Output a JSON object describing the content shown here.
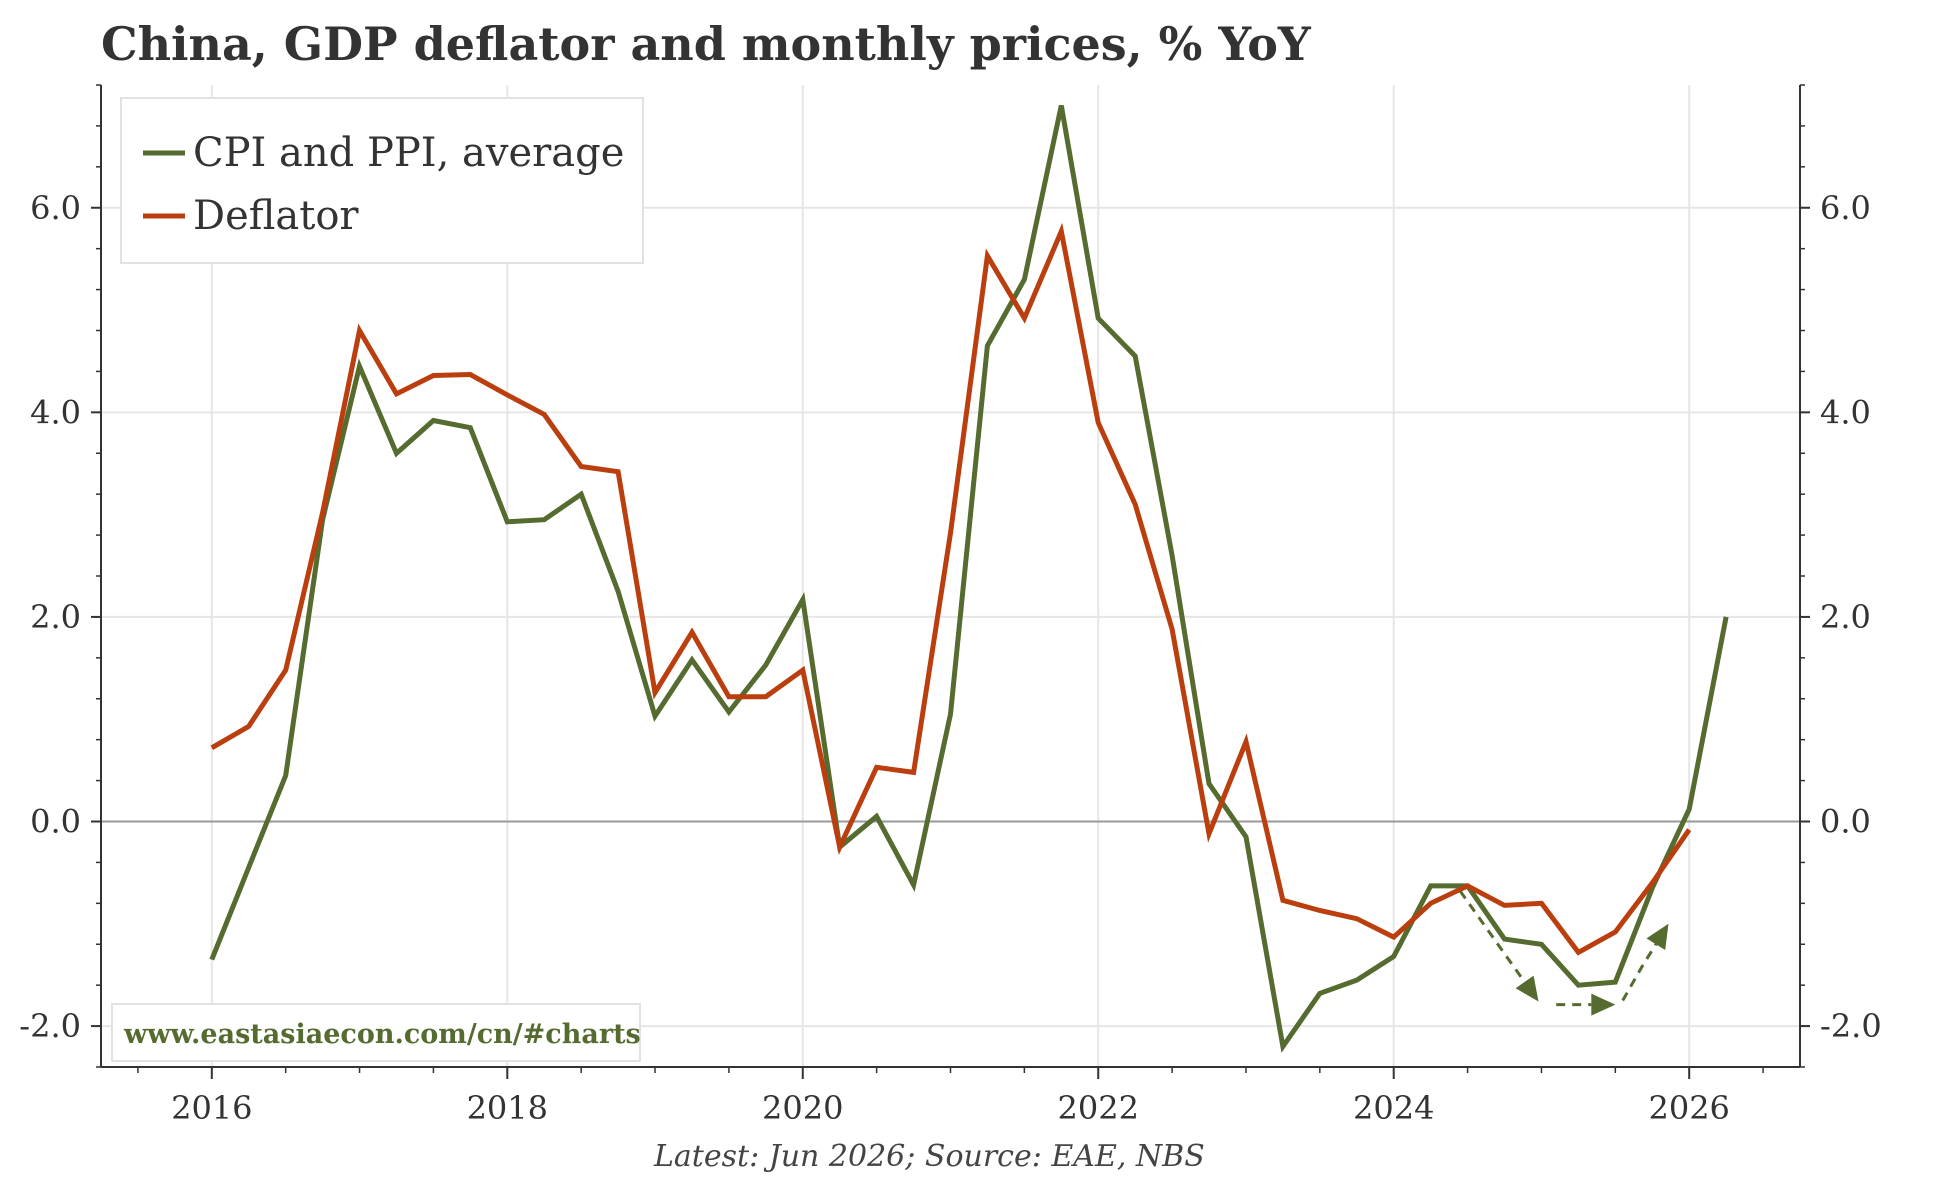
{
  "chart_data": {
    "type": "line",
    "title": "China, GDP deflator and monthly prices, % YoY",
    "source_note": "Latest: Jun 2026; Source: EAE, NBS",
    "website": "www.eastasiaecon.com/cn/#charts",
    "xlim": [
      2015.25,
      2026.75
    ],
    "ylim": [
      -2.4,
      7.2
    ],
    "x_ticks": [
      2016,
      2018,
      2020,
      2022,
      2024,
      2026
    ],
    "x_tick_labels": [
      "2016",
      "2018",
      "2020",
      "2022",
      "2024",
      "2026"
    ],
    "y_ticks": [
      -2,
      0,
      2,
      4,
      6
    ],
    "y_tick_labels": [
      "-2.0",
      "0.0",
      "2.0",
      "4.0",
      "6.0"
    ],
    "grid": true,
    "legend_position": "top-left",
    "zero_line": true,
    "series": [
      {
        "name": "CPI and PPI, average",
        "color": "#556b2f",
        "x": [
          2016.0,
          2016.25,
          2016.5,
          2016.75,
          2017.0,
          2017.25,
          2017.5,
          2017.75,
          2018.0,
          2018.25,
          2018.5,
          2018.75,
          2019.0,
          2019.25,
          2019.5,
          2019.75,
          2020.0,
          2020.25,
          2020.5,
          2020.75,
          2021.0,
          2021.25,
          2021.5,
          2021.75,
          2022.0,
          2022.25,
          2022.5,
          2022.75,
          2023.0,
          2023.25,
          2023.5,
          2023.75,
          2024.0,
          2024.25,
          2024.5,
          2024.75,
          2025.0,
          2025.25,
          2025.5,
          2025.75,
          2026.0,
          2026.25
        ],
        "values": [
          -1.35,
          -0.45,
          0.45,
          2.95,
          4.45,
          3.6,
          3.92,
          3.85,
          2.93,
          2.95,
          3.2,
          2.25,
          1.03,
          1.58,
          1.07,
          1.53,
          2.17,
          -0.25,
          0.05,
          -0.62,
          1.05,
          4.65,
          5.3,
          7.0,
          4.92,
          4.55,
          2.6,
          0.37,
          -0.15,
          -2.2,
          -1.68,
          -1.55,
          -1.32,
          -0.63,
          -0.63,
          -1.15,
          -1.2,
          -1.6,
          -1.57,
          -0.65,
          0.12,
          2.0
        ]
      },
      {
        "name": "Deflator",
        "color": "#bb3f0e",
        "x": [
          2016.0,
          2016.25,
          2016.5,
          2016.75,
          2017.0,
          2017.25,
          2017.5,
          2017.75,
          2018.0,
          2018.25,
          2018.5,
          2018.75,
          2019.0,
          2019.25,
          2019.5,
          2019.75,
          2020.0,
          2020.25,
          2020.5,
          2020.75,
          2021.0,
          2021.25,
          2021.5,
          2021.75,
          2022.0,
          2022.25,
          2022.5,
          2022.75,
          2023.0,
          2023.25,
          2023.5,
          2023.75,
          2024.0,
          2024.25,
          2024.5,
          2024.75,
          2025.0,
          2025.25,
          2025.5,
          2025.75,
          2026.0
        ],
        "values": [
          0.72,
          0.93,
          1.48,
          3.02,
          4.8,
          4.18,
          4.36,
          4.37,
          4.17,
          3.98,
          3.47,
          3.42,
          1.26,
          1.85,
          1.22,
          1.22,
          1.48,
          -0.25,
          0.53,
          0.48,
          2.82,
          5.53,
          4.92,
          5.77,
          3.9,
          3.1,
          1.88,
          -0.12,
          0.78,
          -0.77,
          -0.87,
          -0.95,
          -1.13,
          -0.8,
          -0.63,
          -0.82,
          -0.8,
          -1.28,
          -1.08,
          -0.6,
          -0.08
        ]
      }
    ],
    "annotations": [
      {
        "type": "dashed-arrow",
        "color": "#556b2f",
        "points": [
          [
            2024.45,
            -0.68
          ],
          [
            2024.98,
            -1.76
          ]
        ]
      },
      {
        "type": "dashed-arrow",
        "color": "#556b2f",
        "points": [
          [
            2025.1,
            -1.79
          ],
          [
            2025.5,
            -1.79
          ]
        ]
      },
      {
        "type": "dashed-arrow",
        "color": "#556b2f",
        "points": [
          [
            2025.55,
            -1.75
          ],
          [
            2025.68,
            -1.42
          ],
          [
            2025.86,
            -1.0
          ]
        ]
      }
    ]
  }
}
